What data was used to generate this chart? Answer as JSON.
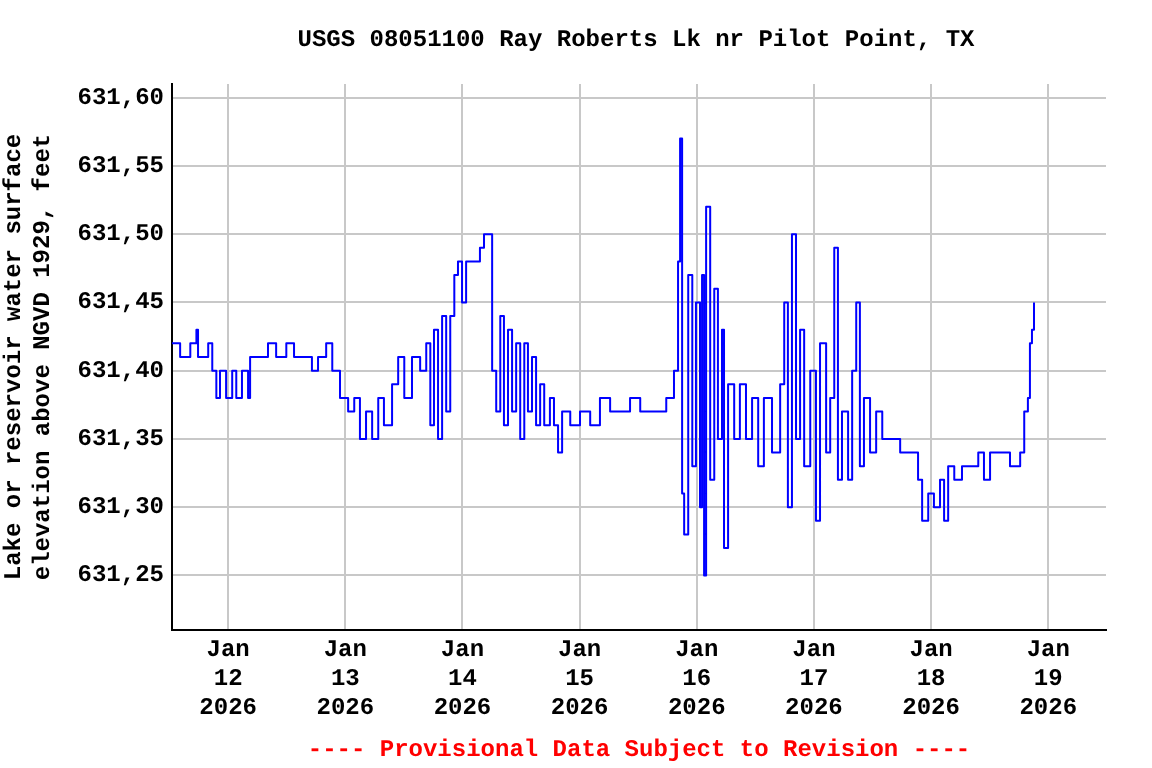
{
  "chart_data": {
    "type": "step",
    "title": "USGS 08051100 Ray Roberts Lk nr Pilot Point, TX",
    "ylabel": "Lake or reservoir water surface elevation above NGVD 1929, feet",
    "annotations": [
      "---- Provisional Data Subject to Revision ----"
    ],
    "x": [
      "2026-01-11T12:30",
      "2026-01-11T14:10",
      "2026-01-11T16:15",
      "2026-01-11T17:30",
      "2026-01-11T17:50",
      "2026-01-11T19:55",
      "2026-01-11T20:45",
      "2026-01-11T21:35",
      "2026-01-11T22:20",
      "2026-01-11T23:35",
      "2026-01-12T00:50",
      "2026-01-12T01:40",
      "2026-01-12T02:50",
      "2026-01-12T04:05",
      "2026-01-12T04:30",
      "2026-01-12T07:20",
      "2026-01-12T08:10",
      "2026-01-12T09:50",
      "2026-01-12T11:55",
      "2026-01-12T13:30",
      "2026-01-12T15:35",
      "2026-01-12T17:10",
      "2026-01-12T18:25",
      "2026-01-12T20:05",
      "2026-01-12T21:20",
      "2026-01-12T22:55",
      "2026-01-13T00:35",
      "2026-01-13T01:50",
      "2026-01-13T03:00",
      "2026-01-13T04:15",
      "2026-01-13T05:30",
      "2026-01-13T06:45",
      "2026-01-13T07:55",
      "2026-01-13T09:35",
      "2026-01-13T10:50",
      "2026-01-13T12:05",
      "2026-01-13T13:40",
      "2026-01-13T15:20",
      "2026-01-13T16:35",
      "2026-01-13T17:25",
      "2026-01-13T18:10",
      "2026-01-13T19:00",
      "2026-01-13T19:50",
      "2026-01-13T20:40",
      "2026-01-13T21:30",
      "2026-01-13T22:20",
      "2026-01-13T23:05",
      "2026-01-13T23:55",
      "2026-01-14T00:45",
      "2026-01-14T02:00",
      "2026-01-14T03:35",
      "2026-01-14T04:25",
      "2026-01-14T05:40",
      "2026-01-14T06:05",
      "2026-01-14T06:55",
      "2026-01-14T07:45",
      "2026-01-14T08:30",
      "2026-01-14T09:20",
      "2026-01-14T10:10",
      "2026-01-14T11:00",
      "2026-01-14T11:50",
      "2026-01-14T12:40",
      "2026-01-14T13:25",
      "2026-01-14T14:15",
      "2026-01-14T15:05",
      "2026-01-14T15:55",
      "2026-01-14T16:45",
      "2026-01-14T17:55",
      "2026-01-14T18:45",
      "2026-01-14T19:35",
      "2026-01-14T20:25",
      "2026-01-14T22:05",
      "2026-01-15T00:05",
      "2026-01-15T02:10",
      "2026-01-15T04:10",
      "2026-01-15T06:15",
      "2026-01-15T08:20",
      "2026-01-15T10:20",
      "2026-01-15T12:25",
      "2026-01-15T15:40",
      "2026-01-15T17:45",
      "2026-01-15T19:20",
      "2026-01-15T20:10",
      "2026-01-15T20:35",
      "2026-01-15T21:00",
      "2026-01-15T21:25",
      "2026-01-15T22:15",
      "2026-01-15T23:05",
      "2026-01-15T23:50",
      "2026-01-16T00:40",
      "2026-01-16T01:05",
      "2026-01-16T01:30",
      "2026-01-16T01:55",
      "2026-01-16T02:45",
      "2026-01-16T03:35",
      "2026-01-16T04:20",
      "2026-01-16T05:10",
      "2026-01-16T05:35",
      "2026-01-16T06:25",
      "2026-01-16T07:40",
      "2026-01-16T08:50",
      "2026-01-16T10:05",
      "2026-01-16T11:20",
      "2026-01-16T12:35",
      "2026-01-16T13:45",
      "2026-01-16T15:25",
      "2026-01-16T17:05",
      "2026-01-16T17:55",
      "2026-01-16T18:40",
      "2026-01-16T19:30",
      "2026-01-16T20:20",
      "2026-01-16T21:10",
      "2026-01-16T22:00",
      "2026-01-16T23:15",
      "2026-01-17T00:25",
      "2026-01-17T01:15",
      "2026-01-17T02:30",
      "2026-01-17T03:20",
      "2026-01-17T04:10",
      "2026-01-17T04:55",
      "2026-01-17T05:45",
      "2026-01-17T07:00",
      "2026-01-17T07:50",
      "2026-01-17T08:40",
      "2026-01-17T09:25",
      "2026-01-17T10:15",
      "2026-01-17T11:30",
      "2026-01-17T12:45",
      "2026-01-17T14:00",
      "2026-01-17T15:35",
      "2026-01-17T17:40",
      "2026-01-17T19:40",
      "2026-01-17T21:20",
      "2026-01-17T22:10",
      "2026-01-17T23:25",
      "2026-01-18T00:35",
      "2026-01-18T01:50",
      "2026-01-18T02:40",
      "2026-01-18T03:30",
      "2026-01-18T04:45",
      "2026-01-18T06:20",
      "2026-01-18T08:00",
      "2026-01-18T09:40",
      "2026-01-18T10:50",
      "2026-01-18T12:05",
      "2026-01-18T14:10",
      "2026-01-18T16:10",
      "2026-01-18T18:15",
      "2026-01-18T19:05",
      "2026-01-18T19:50",
      "2026-01-18T20:15",
      "2026-01-18T20:40",
      "2026-01-18T21:05"
    ],
    "series": [
      {
        "color": "#0000ff",
        "values": [
          631.42,
          631.41,
          631.42,
          631.43,
          631.41,
          631.42,
          631.4,
          631.38,
          631.4,
          631.38,
          631.4,
          631.38,
          631.4,
          631.38,
          631.41,
          631.41,
          631.42,
          631.41,
          631.42,
          631.41,
          631.41,
          631.4,
          631.41,
          631.42,
          631.4,
          631.38,
          631.37,
          631.38,
          631.35,
          631.37,
          631.35,
          631.38,
          631.36,
          631.39,
          631.41,
          631.38,
          631.41,
          631.4,
          631.42,
          631.36,
          631.43,
          631.35,
          631.44,
          631.37,
          631.44,
          631.47,
          631.48,
          631.45,
          631.48,
          631.48,
          631.49,
          631.5,
          631.5,
          631.4,
          631.37,
          631.44,
          631.36,
          631.43,
          631.37,
          631.42,
          631.35,
          631.42,
          631.37,
          631.41,
          631.36,
          631.39,
          631.36,
          631.38,
          631.36,
          631.34,
          631.37,
          631.36,
          631.37,
          631.36,
          631.38,
          631.37,
          631.37,
          631.38,
          631.37,
          631.37,
          631.38,
          631.4,
          631.48,
          631.57,
          631.31,
          631.28,
          631.47,
          631.33,
          631.45,
          631.3,
          631.47,
          631.25,
          631.52,
          631.32,
          631.46,
          631.35,
          631.43,
          631.27,
          631.39,
          631.35,
          631.39,
          631.35,
          631.38,
          631.33,
          631.38,
          631.34,
          631.39,
          631.45,
          631.3,
          631.5,
          631.35,
          631.43,
          631.33,
          631.4,
          631.29,
          631.42,
          631.34,
          631.38,
          631.49,
          631.32,
          631.37,
          631.32,
          631.4,
          631.45,
          631.33,
          631.38,
          631.34,
          631.37,
          631.35,
          631.35,
          631.34,
          631.34,
          631.32,
          631.29,
          631.31,
          631.3,
          631.32,
          631.29,
          631.33,
          631.32,
          631.33,
          631.33,
          631.34,
          631.32,
          631.34,
          631.34,
          631.33,
          631.34,
          631.37,
          631.38,
          631.42,
          631.43,
          631.45
        ]
      }
    ],
    "xlim": [
      "2026-01-11T12:30",
      "2026-01-19T11:50"
    ],
    "ylim": [
      631.21,
      631.61
    ],
    "xticks": [
      {
        "value": "2026-01-12",
        "label": "Jan 12 2026"
      },
      {
        "value": "2026-01-13",
        "label": "Jan 13 2026"
      },
      {
        "value": "2026-01-14",
        "label": "Jan 14 2026"
      },
      {
        "value": "2026-01-15",
        "label": "Jan 15 2026"
      },
      {
        "value": "2026-01-16",
        "label": "Jan 16 2026"
      },
      {
        "value": "2026-01-17",
        "label": "Jan 17 2026"
      },
      {
        "value": "2026-01-18",
        "label": "Jan 18 2026"
      },
      {
        "value": "2026-01-19",
        "label": "Jan 19 2026"
      }
    ],
    "yticks": [
      {
        "value": 631.25,
        "label": "631,25"
      },
      {
        "value": 631.3,
        "label": "631,30"
      },
      {
        "value": 631.35,
        "label": "631,35"
      },
      {
        "value": 631.4,
        "label": "631,40"
      },
      {
        "value": 631.45,
        "label": "631,45"
      },
      {
        "value": 631.5,
        "label": "631,50"
      },
      {
        "value": 631.55,
        "label": "631,55"
      },
      {
        "value": 631.6,
        "label": "631,60"
      }
    ],
    "grid": true
  }
}
